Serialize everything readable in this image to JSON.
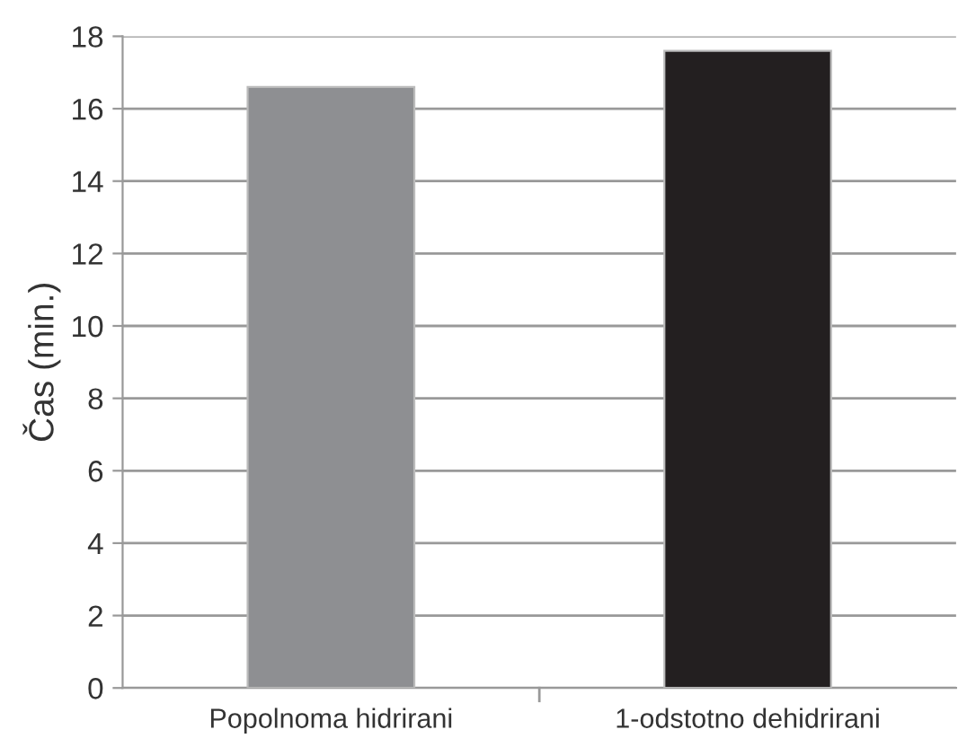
{
  "chart_data": {
    "type": "bar",
    "ylabel": "Čas (min.)",
    "categories": [
      "Popolnoma hidrirani",
      "1-odstotno dehidrirani"
    ],
    "values": [
      16.6,
      17.6
    ],
    "colors": [
      "#8e8f92",
      "#231f20"
    ],
    "ylim": [
      0,
      18
    ],
    "yticks": [
      0,
      2,
      4,
      6,
      8,
      10,
      12,
      14,
      16,
      18
    ],
    "grid": "y"
  }
}
